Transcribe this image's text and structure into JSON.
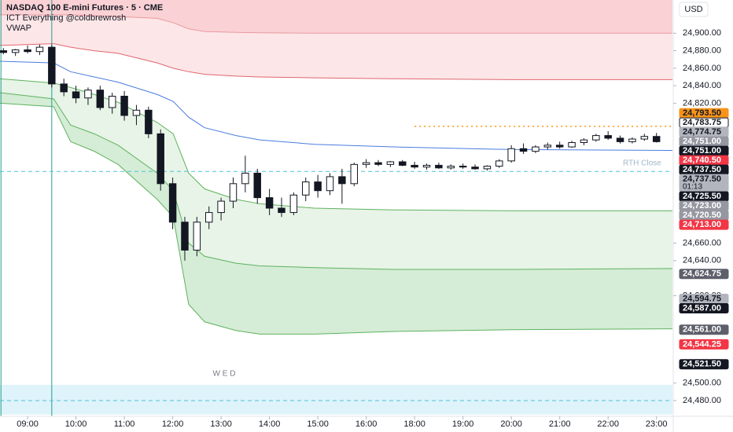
{
  "chart_data": {
    "type": "candlestick",
    "title": "NASDAQ 100 E-mini Futures · 5 · CME",
    "indicators": [
      "ICT Everything @coldbrewrosh",
      "VWAP"
    ],
    "currency": "USD",
    "session_label": "W E D",
    "annotation": "RTH Close",
    "xlim": [
      8.43,
      23.33
    ],
    "session_break": [
      17,
      18
    ],
    "ylim": [
      24462,
      24938
    ],
    "xticks": [
      {
        "value": 9,
        "label": "09:00"
      },
      {
        "value": 10,
        "label": "10:00"
      },
      {
        "value": 11,
        "label": "11:00"
      },
      {
        "value": 12,
        "label": "12:00"
      },
      {
        "value": 13,
        "label": "13:00"
      },
      {
        "value": 14,
        "label": "14:00"
      },
      {
        "value": 15,
        "label": "15:00"
      },
      {
        "value": 16,
        "label": "16:00"
      },
      {
        "value": 18,
        "label": "18:00"
      },
      {
        "value": 19,
        "label": "19:00"
      },
      {
        "value": 20,
        "label": "20:00"
      },
      {
        "value": 21,
        "label": "21:00"
      },
      {
        "value": 22,
        "label": "22:00"
      },
      {
        "value": 23,
        "label": "23:00"
      }
    ],
    "yticks": [
      {
        "value": 24480,
        "label": "24,480.00"
      },
      {
        "value": 24500,
        "label": "24,500.00"
      },
      {
        "value": 24600,
        "label": "24,600.00"
      },
      {
        "value": 24640,
        "label": "24,640.00"
      },
      {
        "value": 24660,
        "label": "24,660.00"
      },
      {
        "value": 24820,
        "label": "24,820.00"
      },
      {
        "value": 24840,
        "label": "24,840.00"
      },
      {
        "value": 24860,
        "label": "24,860.00"
      },
      {
        "value": 24880,
        "label": "24,880.00"
      },
      {
        "value": 24900,
        "label": "24,900.00"
      }
    ],
    "up_color": "#ffffff",
    "down_color": "#131722",
    "wick_color": "#131722",
    "x": [
      8.5,
      8.75,
      9,
      9.25,
      9.5,
      9.75,
      10,
      10.25,
      10.5,
      10.75,
      11,
      11.25,
      11.5,
      11.75,
      12,
      12.25,
      12.5,
      12.75,
      13,
      13.25,
      13.5,
      13.75,
      14,
      14.25,
      14.5,
      14.75,
      15,
      15.25,
      15.5,
      15.75,
      16,
      16.25,
      16.5,
      16.75,
      18,
      18.25,
      18.5,
      18.75,
      19,
      19.25,
      19.5,
      19.75,
      20,
      20.25,
      20.5,
      20.75,
      21,
      21.25,
      21.5,
      21.75,
      22,
      22.25,
      22.5,
      22.75,
      23
    ],
    "open": [
      24880,
      24878,
      24881,
      24879,
      24884,
      24842,
      24833,
      24826,
      24835,
      24815,
      24828,
      24806,
      24812,
      24785,
      24728,
      24684,
      24652,
      24684,
      24695,
      24708,
      24728,
      24740,
      24712,
      24700,
      24695,
      24715,
      24730,
      24720,
      24736,
      24728,
      24750,
      24752,
      24750,
      24753,
      24749,
      24747,
      24749,
      24746,
      24748,
      24747,
      24745,
      24748,
      24754,
      24768,
      24765,
      24770,
      24772,
      24770,
      24775,
      24778,
      24783,
      24780,
      24776,
      24779,
      24782
    ],
    "high": [
      24883,
      24882,
      24886,
      24887,
      24887,
      24848,
      24840,
      24838,
      24840,
      24832,
      24834,
      24818,
      24816,
      24790,
      24735,
      24690,
      24690,
      24702,
      24712,
      24735,
      24760,
      24745,
      24722,
      24712,
      24718,
      24735,
      24738,
      24740,
      24745,
      24752,
      24756,
      24755,
      24754,
      24755,
      24753,
      24751,
      24752,
      24750,
      24751,
      24750,
      24749,
      24756,
      24772,
      24774,
      24772,
      24775,
      24776,
      24777,
      24780,
      24785,
      24788,
      24783,
      24781,
      24785,
      24786
    ],
    "low": [
      24876,
      24874,
      24877,
      24875,
      24838,
      24828,
      24820,
      24818,
      24812,
      24808,
      24800,
      24795,
      24780,
      24720,
      24676,
      24640,
      24645,
      24676,
      24686,
      24700,
      24718,
      24705,
      24692,
      24690,
      24692,
      24708,
      24712,
      24715,
      24705,
      24725,
      24746,
      24748,
      24747,
      24748,
      24745,
      24744,
      24745,
      24744,
      24745,
      24744,
      24743,
      24746,
      24752,
      24762,
      24763,
      24767,
      24768,
      24769,
      24772,
      24776,
      24778,
      24774,
      24774,
      24777,
      24775
    ],
    "close": [
      24878,
      24881,
      24879,
      24884,
      24842,
      24833,
      24826,
      24835,
      24815,
      24828,
      24806,
      24812,
      24785,
      24728,
      24684,
      24652,
      24684,
      24695,
      24708,
      24728,
      24740,
      24712,
      24700,
      24695,
      24715,
      24730,
      24720,
      24736,
      24728,
      24750,
      24752,
      24750,
      24753,
      24749,
      24747,
      24749,
      24746,
      24748,
      24747,
      24745,
      24748,
      24754,
      24768,
      24765,
      24770,
      24772,
      24770,
      24775,
      24778,
      24783,
      24780,
      24776,
      24779,
      24782,
      24776
    ],
    "bands": {
      "x": [
        8.43,
        9.54,
        9.89,
        10.38,
        10.87,
        11.68,
        12.01,
        12.33,
        12.66,
        13.31,
        13.8,
        14.93,
        16.56,
        20,
        23.33
      ],
      "lines": [
        {
          "color": "#e99aa0",
          "fill_above": "#fad1d4",
          "fill_below": "#fde6e7",
          "values": [
            24921,
            24921,
            24921,
            24920,
            24919,
            24917,
            24912,
            24905,
            24902,
            24901,
            24900.5,
            24900,
            24900,
            24900,
            24900
          ]
        },
        {
          "color": "#e06670",
          "values": [
            24886,
            24888,
            24884,
            24880,
            24877,
            24866,
            24860,
            24856,
            24853,
            24851,
            24850,
            24849,
            24848,
            24847,
            24847
          ]
        },
        {
          "color": "#4a7be0",
          "values": [
            24868,
            24866,
            24856,
            24850,
            24844,
            24830,
            24822,
            24804,
            24792,
            24783,
            24778,
            24773,
            24770,
            24767,
            24766
          ]
        },
        {
          "color": "#5fb25f",
          "fill_below": "#e7f4e7",
          "values": [
            24848,
            24843,
            24838,
            24830,
            24821,
            24798,
            24785,
            24740,
            24722,
            24710,
            24705,
            24700,
            24698,
            24697,
            24697
          ]
        },
        {
          "color": "#5fb25f",
          "fill_below": "#d5ecd6",
          "values": [
            24832,
            24825,
            24795,
            24785,
            24772,
            24740,
            24720,
            24660,
            24645,
            24637,
            24634,
            24632,
            24630,
            24630,
            24631
          ]
        },
        {
          "color": "#5fb25f",
          "values": [
            24820,
            24816,
            24776,
            24765,
            24750,
            24710,
            24690,
            24590,
            24570,
            24560,
            24556,
            24556,
            24559,
            24561,
            24562
          ]
        }
      ]
    },
    "zones": [
      {
        "from": 24464,
        "to": 24498,
        "color": "#def3fa"
      }
    ],
    "levels": [
      {
        "value": 24793.5,
        "start": 18,
        "color": "#f7931a",
        "style": "dotted"
      },
      {
        "value": 24742,
        "start": 8.43,
        "color": "#4cc3d9",
        "style": "dashed"
      },
      {
        "value": 24480,
        "start": 8.43,
        "color": "#4cc3d9",
        "style": "dashed"
      }
    ],
    "vlines": [
      {
        "value": 8.45,
        "color": "#2a9d8f"
      },
      {
        "value": 9.5,
        "color": "#2a9d8f"
      }
    ],
    "price_labels": [
      {
        "value": 24793.5,
        "label": "24,793.50",
        "color": "#f7931a"
      },
      {
        "value": 24783.75,
        "label": "24,783.75",
        "color": "#ffffff"
      },
      {
        "value": 24774.75,
        "label": "24,774.75",
        "color": "#b2b5be"
      },
      {
        "value": 24751,
        "label": "24,751.00",
        "color": "#9598a1"
      },
      {
        "value": 24751,
        "label": "24,751.00",
        "color": "#131722"
      },
      {
        "value": 24740.5,
        "label": "24,740.50",
        "color": "#f23645"
      },
      {
        "value": 24737.5,
        "label": "24,737.50",
        "color": "#131722"
      },
      {
        "value": 24737.5,
        "label": "24,737.50",
        "color": "#b2b5be",
        "countdown": "01:13"
      },
      {
        "value": 24725.5,
        "label": "24,725.50",
        "color": "#131722"
      },
      {
        "value": 24723,
        "label": "24,723.00",
        "color": "#9598a1"
      },
      {
        "value": 24720.5,
        "label": "24,720.50",
        "color": "#9598a1"
      },
      {
        "value": 24713,
        "label": "24,713.00",
        "color": "#f23645"
      },
      {
        "value": 24624.75,
        "label": "24,624.75",
        "color": "#5d606b"
      },
      {
        "value": 24594.75,
        "label": "24,594.75",
        "color": "#b2b5be"
      },
      {
        "value": 24587,
        "label": "24,587.00",
        "color": "#131722"
      },
      {
        "value": 24561,
        "label": "24,561.00",
        "color": "#5d606b"
      },
      {
        "value": 24544.25,
        "label": "24,544.25",
        "color": "#f23645"
      },
      {
        "value": 24521.5,
        "label": "24,521.50",
        "color": "#131722"
      }
    ]
  }
}
